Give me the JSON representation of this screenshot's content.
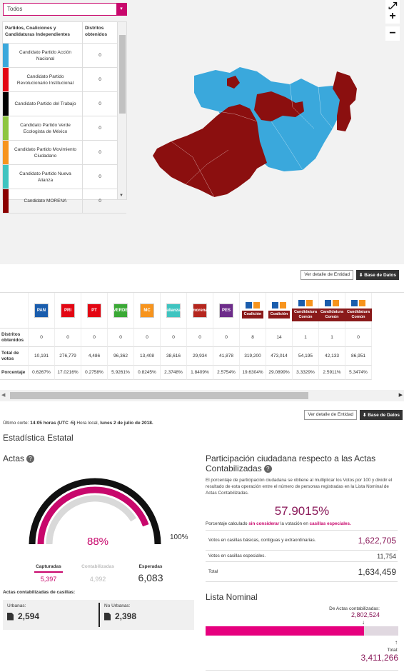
{
  "filter": {
    "selected": "Todos",
    "caret": "▾"
  },
  "party_table": {
    "col1": "Partidos, Coaliciones y Candidaturas Independientes",
    "col2": "Distritos obtenidos",
    "rows": [
      {
        "name": "Candidato Partido Acción Nacional",
        "value": "0",
        "color": "#3aa8dc"
      },
      {
        "name": "Candidato Partido Revolucionario Institucional",
        "value": "0",
        "color": "#e30613"
      },
      {
        "name": "Candidato Partido del Trabajo",
        "value": "0",
        "color": "#000000"
      },
      {
        "name": "Candidato Partido Verde Ecologista de México",
        "value": "0",
        "color": "#8dc63f"
      },
      {
        "name": "Candidato Partido Movimiento Ciudadano",
        "value": "0",
        "color": "#f7941d"
      },
      {
        "name": "Candidato Partido Nueva Alianza",
        "value": "0",
        "color": "#3fc4c0"
      },
      {
        "name": "Candidato MORENA",
        "value": "0",
        "color": "#8b0000"
      }
    ]
  },
  "map_controls": {
    "expand": "⤢",
    "zoom_in": "+",
    "zoom_out": "−"
  },
  "map_colors": {
    "pan": "#3aa8dc",
    "morena": "#8b0f0f"
  },
  "buttons": {
    "detalle": "Ver detalle de Entidad",
    "base": "Base de Datos"
  },
  "results": {
    "row_labels": [
      "Distritos obtenidos",
      "Total de votos",
      "Porcentaje"
    ],
    "parties": [
      {
        "logo": "PAN",
        "color": "#1a5dad",
        "distritos": "0",
        "votos": "10,191",
        "pct": "0.6267%"
      },
      {
        "logo": "PRI",
        "color": "#e30613",
        "distritos": "0",
        "votos": "276,779",
        "pct": "17.0216%"
      },
      {
        "logo": "PT",
        "color": "#e30613",
        "distritos": "0",
        "votos": "4,486",
        "pct": "0.2758%"
      },
      {
        "logo": "VERDE",
        "color": "#3aa935",
        "distritos": "0",
        "votos": "96,362",
        "pct": "5.9261%"
      },
      {
        "logo": "MC",
        "color": "#f7941d",
        "distritos": "0",
        "votos": "13,408",
        "pct": "0.8245%"
      },
      {
        "logo": "alianza",
        "color": "#3fc4c0",
        "distritos": "0",
        "votos": "38,616",
        "pct": "2.3748%"
      },
      {
        "logo": "morena",
        "color": "#b5261e",
        "distritos": "0",
        "votos": "29,934",
        "pct": "1.8409%"
      },
      {
        "logo": "PES",
        "color": "#6d2c8a",
        "distritos": "0",
        "votos": "41,878",
        "pct": "2.5754%"
      },
      {
        "logo": "Coalición",
        "color": "#8a1a1a",
        "distritos": "8",
        "votos": "319,200",
        "pct": "19.6304%",
        "badge": "Coalición"
      },
      {
        "logo": "Coalición",
        "color": "#8a1a1a",
        "distritos": "14",
        "votos": "473,014",
        "pct": "29.0899%",
        "badge": "Coalición"
      },
      {
        "logo": "Común",
        "color": "#8a1a1a",
        "distritos": "1",
        "votos": "54,195",
        "pct": "3.3329%",
        "badge": "Candidatura Común"
      },
      {
        "logo": "Común",
        "color": "#8a1a1a",
        "distritos": "1",
        "votos": "42,133",
        "pct": "2.5911%",
        "badge": "Candidatura Común"
      },
      {
        "logo": "Común",
        "color": "#8a1a1a",
        "distritos": "0",
        "votos": "86,951",
        "pct": "5.3474%",
        "badge": "Candidatura Común"
      }
    ]
  },
  "cut": {
    "prefix": "Último corte:",
    "time": "14:05 horas (UTC -5)",
    "mid": "Hora local,",
    "date": "lunes 2 de julio de 2018."
  },
  "state_title": "Estadística Estatal",
  "actas": {
    "title": "Actas",
    "percent_label": "88%",
    "percent": 0.88,
    "full_label": "100%",
    "capturadas_label": "Capturadas",
    "capturadas": "5,397",
    "contabilizadas_label": "Contabilizadas",
    "contabilizadas": "4,992",
    "esperadas_label": "Esperadas",
    "esperadas": "6,083",
    "casillas_title": "Actas contabilizadas de casillas:",
    "urbanas_label": "Urbanas:",
    "urbanas": "2,594",
    "no_urbanas_label": "No Urbanas:",
    "no_urbanas": "2,398"
  },
  "participacion": {
    "title": "Participación ciudadana respecto a las Actas Contabilizadas",
    "desc": "El porcentaje de participación ciudadana se obtiene al multiplicar los Votos por 100 y dividir el resultado de esta operación entre el número de personas registradas en la Lista Nominal de Actas Contabilizadas.",
    "pct": "57.9015%",
    "note_a": "Porcentaje calculado",
    "note_b": "sin considerar",
    "note_c": "la votación en",
    "note_d": "casillas especiales.",
    "rows": [
      {
        "label": "Votos en casillas básicas, contiguas y extraordinarias.",
        "value": "1,622,705"
      },
      {
        "label": "Votos en casillas especiales.",
        "value": "11,754"
      },
      {
        "label": "Total",
        "value": "1,634,459"
      }
    ]
  },
  "lista": {
    "title": "Lista Nominal",
    "de_actas_label": "De Actas contabilizadas:",
    "de_actas": "2,802,524",
    "total_label": "Total:",
    "total": "3,411,266",
    "fill_fraction": 0.8216
  }
}
